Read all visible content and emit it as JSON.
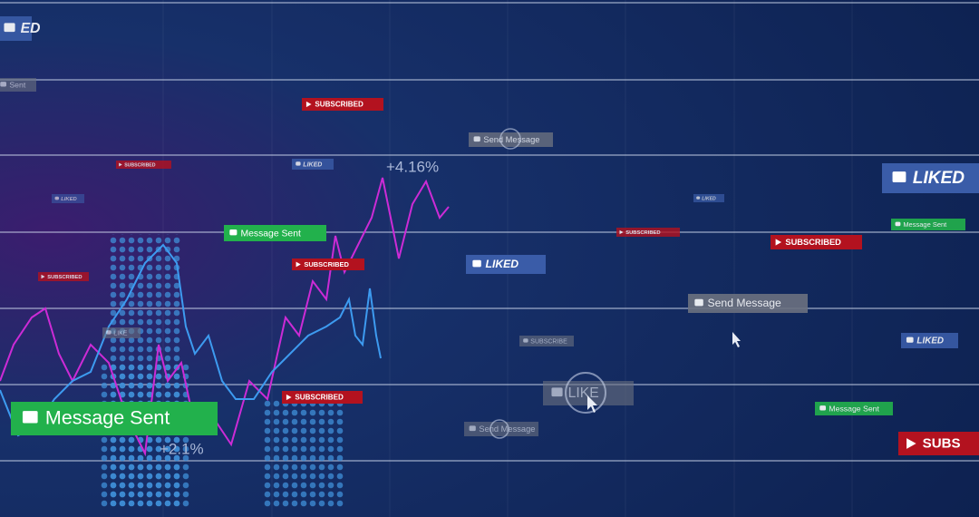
{
  "badges": [
    "ED",
    "Sent",
    "SUBSCRIBED",
    "Send Message",
    "SUBSCRIBED",
    "LIKED",
    "LIKED",
    "LIKED",
    "LIKED",
    "Message Sent",
    "SUBSCRIBED",
    "Message Sent",
    "SUBSCRIBED",
    "SUBSCRIBED",
    "LIKED",
    "SUBSCRIBED",
    "Send Message",
    "LIKE",
    "SUBSCRIBE",
    "LIKED",
    "LIKE",
    "SUBSCRIBED",
    "Message Sent",
    "Message Sent",
    "Send Message",
    "SUBS"
  ],
  "labels": [
    "+4.16%",
    "+2.1%"
  ]
}
